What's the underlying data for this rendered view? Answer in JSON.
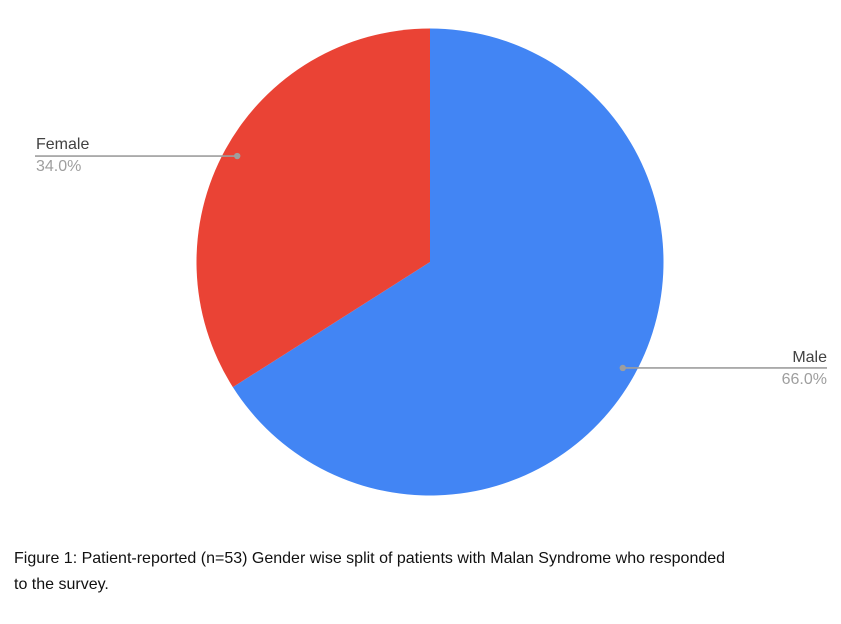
{
  "caption": {
    "line1": "Figure 1: Patient-reported (n=53) Gender wise split of patients with Malan Syndrome who responded",
    "line2": "to the survey."
  },
  "chart_data": {
    "type": "pie",
    "title": "",
    "categories": [
      "Male",
      "Female"
    ],
    "values": [
      66.0,
      34.0
    ],
    "unit": "%",
    "slices": [
      {
        "label": "Male",
        "value": 66.0,
        "display_value": "66.0%",
        "color": "#4285F4",
        "label_side": "right"
      },
      {
        "label": "Female",
        "value": 34.0,
        "display_value": "34.0%",
        "color": "#EA4335",
        "label_side": "left"
      }
    ],
    "start_angle_deg": 0,
    "direction": "clockwise",
    "legend_position": "callout-labels",
    "grid": false,
    "colors": {
      "leader_line": "#9e9e9e",
      "label_text": "#424242",
      "percent_text": "#9e9e9e",
      "background": "#ffffff"
    }
  }
}
